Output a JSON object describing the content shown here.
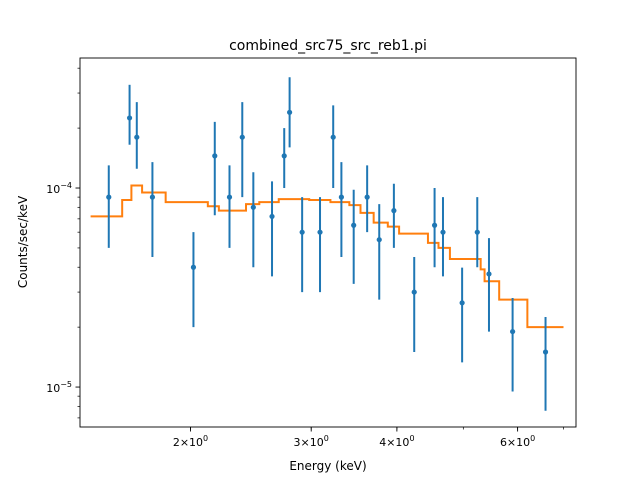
{
  "chart_data": {
    "type": "scatter",
    "title": "combined_src75_src_reb1.pi",
    "xlabel": "Energy (keV)",
    "ylabel": "Counts/sec/keV",
    "xscale": "log",
    "yscale": "log",
    "xlim": [
      1.38,
      7.3
    ],
    "ylim": [
      6.3e-06,
      0.00045
    ],
    "x_ticks": [
      {
        "value": 2,
        "base": "2×10",
        "exp": "0"
      },
      {
        "value": 3,
        "base": "3×10",
        "exp": "0"
      },
      {
        "value": 4,
        "base": "4×10",
        "exp": "0"
      },
      {
        "value": 6,
        "base": "6×10",
        "exp": "0"
      }
    ],
    "y_ticks": [
      {
        "value": 0.0001,
        "base": "10",
        "exp": "−4"
      },
      {
        "value": 1e-05,
        "base": "10",
        "exp": "−5"
      }
    ],
    "grid": false,
    "colors": {
      "data": "#1f77b4",
      "model": "#ff7f0e"
    },
    "series": [
      {
        "type": "errorbar",
        "points": [
          {
            "x": 1.52,
            "y": 9e-05,
            "lo": 5e-05,
            "hi": 0.00013
          },
          {
            "x": 1.63,
            "y": 0.000225,
            "lo": 0.000165,
            "hi": 0.00033
          },
          {
            "x": 1.67,
            "y": 0.00018,
            "lo": 0.000125,
            "hi": 0.00027
          },
          {
            "x": 1.76,
            "y": 9e-05,
            "lo": 4.5e-05,
            "hi": 0.000135
          },
          {
            "x": 2.02,
            "y": 4e-05,
            "lo": 2e-05,
            "hi": 6e-05
          },
          {
            "x": 2.17,
            "y": 0.000145,
            "lo": 7.3e-05,
            "hi": 0.000215
          },
          {
            "x": 2.28,
            "y": 9e-05,
            "lo": 5e-05,
            "hi": 0.00013
          },
          {
            "x": 2.38,
            "y": 0.00018,
            "lo": 9e-05,
            "hi": 0.00027
          },
          {
            "x": 2.47,
            "y": 8e-05,
            "lo": 4e-05,
            "hi": 0.00012
          },
          {
            "x": 2.63,
            "y": 7.2e-05,
            "lo": 3.6e-05,
            "hi": 0.000108
          },
          {
            "x": 2.74,
            "y": 0.000145,
            "lo": 0.0001,
            "hi": 0.0002
          },
          {
            "x": 2.79,
            "y": 0.00024,
            "lo": 0.00016,
            "hi": 0.00036
          },
          {
            "x": 2.91,
            "y": 6e-05,
            "lo": 3e-05,
            "hi": 9e-05
          },
          {
            "x": 3.09,
            "y": 6e-05,
            "lo": 3e-05,
            "hi": 9e-05
          },
          {
            "x": 3.23,
            "y": 0.00018,
            "lo": 0.0001,
            "hi": 0.00026
          },
          {
            "x": 3.32,
            "y": 9e-05,
            "lo": 4.5e-05,
            "hi": 0.000135
          },
          {
            "x": 3.46,
            "y": 6.5e-05,
            "lo": 3.3e-05,
            "hi": 9.8e-05
          },
          {
            "x": 3.62,
            "y": 9e-05,
            "lo": 6e-05,
            "hi": 0.00013
          },
          {
            "x": 3.77,
            "y": 5.5e-05,
            "lo": 2.75e-05,
            "hi": 8.3e-05
          },
          {
            "x": 3.96,
            "y": 7.7e-05,
            "lo": 5e-05,
            "hi": 0.000105
          },
          {
            "x": 4.24,
            "y": 3e-05,
            "lo": 1.5e-05,
            "hi": 4.5e-05
          },
          {
            "x": 4.54,
            "y": 6.5e-05,
            "lo": 4e-05,
            "hi": 0.0001
          },
          {
            "x": 4.67,
            "y": 6e-05,
            "lo": 3.6e-05,
            "hi": 9e-05
          },
          {
            "x": 4.98,
            "y": 2.65e-05,
            "lo": 1.33e-05,
            "hi": 3.98e-05
          },
          {
            "x": 5.24,
            "y": 6e-05,
            "lo": 4e-05,
            "hi": 9e-05
          },
          {
            "x": 5.45,
            "y": 3.7e-05,
            "lo": 1.9e-05,
            "hi": 5.6e-05
          },
          {
            "x": 5.9,
            "y": 1.9e-05,
            "lo": 9.5e-06,
            "hi": 2.8e-05
          },
          {
            "x": 6.59,
            "y": 1.5e-05,
            "lo": 7.6e-06,
            "hi": 2.25e-05
          }
        ]
      },
      {
        "type": "step",
        "points": [
          {
            "x": 1.43,
            "y": 7.2e-05
          },
          {
            "x": 1.59,
            "y": 8.7e-05
          },
          {
            "x": 1.64,
            "y": 0.000103
          },
          {
            "x": 1.7,
            "y": 9.5e-05
          },
          {
            "x": 1.84,
            "y": 8.5e-05
          },
          {
            "x": 2.12,
            "y": 8.1e-05
          },
          {
            "x": 2.2,
            "y": 7.7e-05
          },
          {
            "x": 2.41,
            "y": 8.3e-05
          },
          {
            "x": 2.52,
            "y": 8.5e-05
          },
          {
            "x": 2.69,
            "y": 8.8e-05
          },
          {
            "x": 2.98,
            "y": 8.7e-05
          },
          {
            "x": 3.2,
            "y": 8.5e-05
          },
          {
            "x": 3.41,
            "y": 8.2e-05
          },
          {
            "x": 3.54,
            "y": 7.5e-05
          },
          {
            "x": 3.7,
            "y": 6.7e-05
          },
          {
            "x": 3.88,
            "y": 6.4e-05
          },
          {
            "x": 4.03,
            "y": 5.9e-05
          },
          {
            "x": 4.44,
            "y": 5.3e-05
          },
          {
            "x": 4.6,
            "y": 5e-05
          },
          {
            "x": 4.78,
            "y": 4.4e-05
          },
          {
            "x": 5.3,
            "y": 3.9e-05
          },
          {
            "x": 5.37,
            "y": 3.4e-05
          },
          {
            "x": 5.64,
            "y": 2.75e-05
          },
          {
            "x": 6.2,
            "y": 2e-05
          },
          {
            "x": 7.0,
            "y": 2e-05
          }
        ]
      }
    ]
  }
}
